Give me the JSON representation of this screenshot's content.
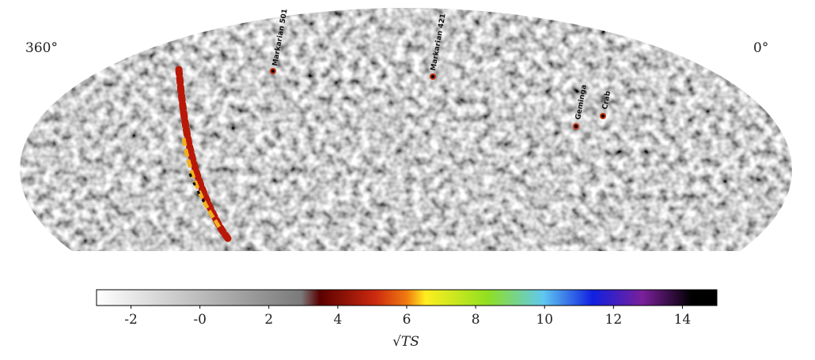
{
  "chart_data": {
    "type": "skymap",
    "lon_labels": [
      "360°",
      "0°"
    ],
    "sources": [
      "Markarian 501",
      "Markarian 421",
      "Geminga",
      "Crab"
    ],
    "colorbar": {
      "label": "√TS",
      "lim": [
        -3,
        15
      ],
      "ticks": [
        -2,
        {
          "value": 0,
          "label": "-0"
        },
        2,
        4,
        6,
        8,
        10,
        12,
        14
      ]
    }
  }
}
